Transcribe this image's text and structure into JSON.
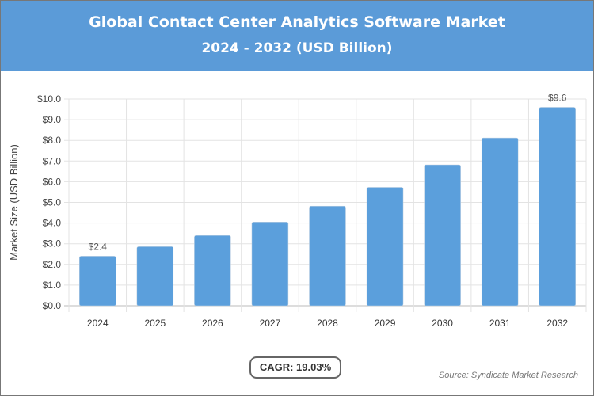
{
  "title": "Global Contact Center Analytics Software Market",
  "subtitle": "2024 - 2032 (USD Billion)",
  "cagr_label": "CAGR: 19.03%",
  "source": "Source: Syndicate Market Research",
  "colors": {
    "header": "#5b9bd8",
    "bar": "#5b9fdc"
  },
  "chart_data": {
    "type": "bar",
    "categories": [
      "2024",
      "2025",
      "2026",
      "2027",
      "2028",
      "2029",
      "2030",
      "2031",
      "2032"
    ],
    "values": [
      2.4,
      2.86,
      3.4,
      4.05,
      4.82,
      5.73,
      6.82,
      8.12,
      9.6
    ],
    "data_labels": {
      "0": "$2.4",
      "8": "$9.6"
    },
    "ylabel": "Market Size (USD Billion)",
    "xlabel": "",
    "ylim": [
      0,
      10
    ],
    "yticks": [
      "$0.0",
      "$1.0",
      "$2.0",
      "$3.0",
      "$4.0",
      "$5.0",
      "$6.0",
      "$7.0",
      "$8.0",
      "$9.0",
      "$10.0"
    ],
    "grid": true
  }
}
